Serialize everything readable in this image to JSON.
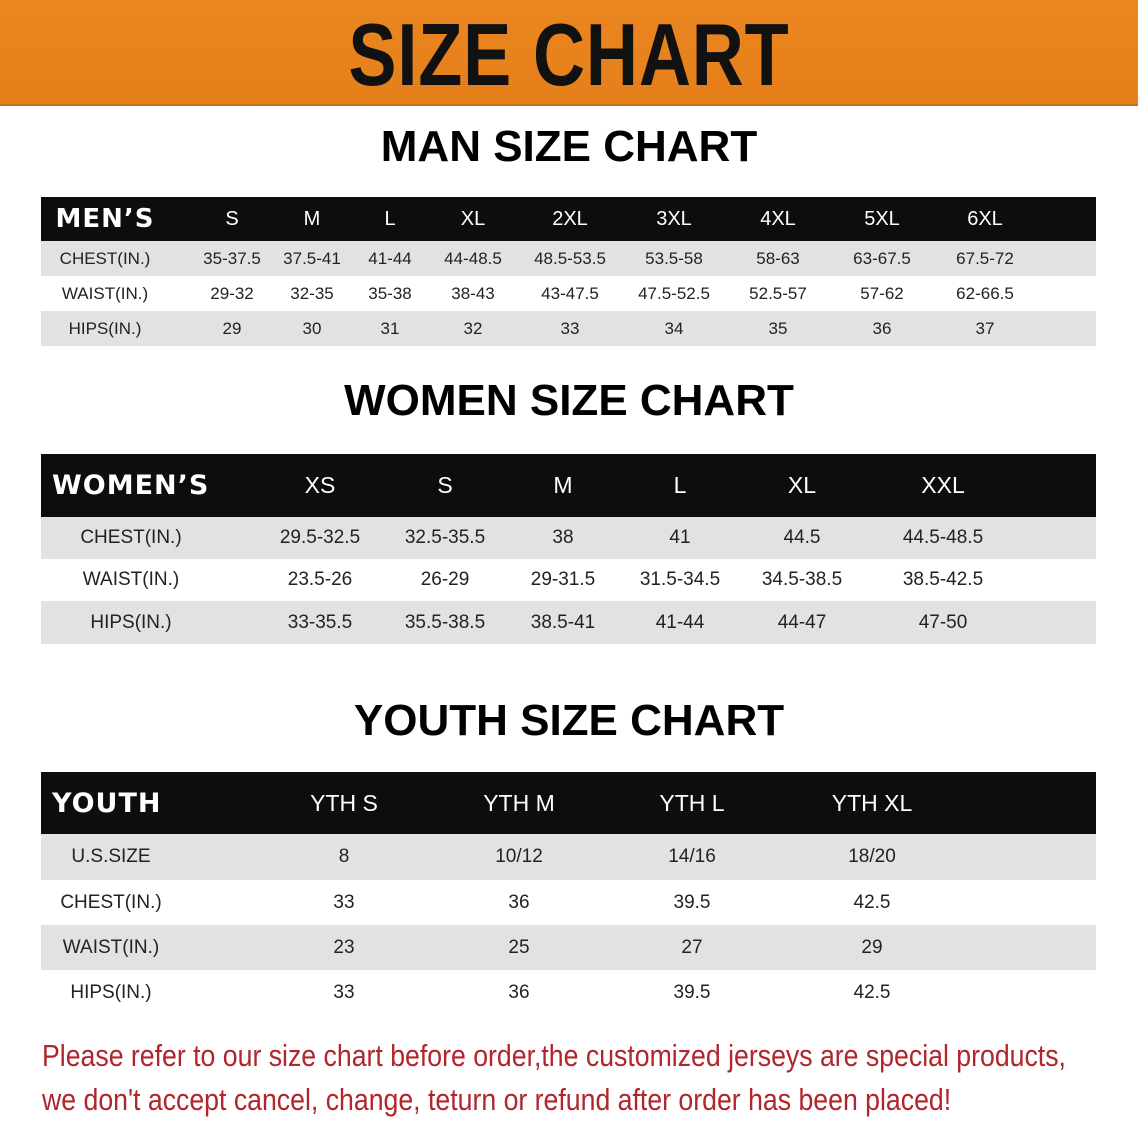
{
  "banner": {
    "title": "SIZE CHART",
    "color": "#e8821e"
  },
  "men": {
    "title": "MAN SIZE CHART",
    "header": [
      "MEN’S",
      "S",
      "M",
      "L",
      "XL",
      "2XL",
      "3XL",
      "4XL",
      "5XL",
      "6XL"
    ],
    "rows": [
      [
        "CHEST(IN.)",
        "35-37.5",
        "37.5-41",
        "41-44",
        "44-48.5",
        "48.5-53.5",
        "53.5-58",
        "58-63",
        "63-67.5",
        "67.5-72"
      ],
      [
        "WAIST(IN.)",
        "29-32",
        "32-35",
        "35-38",
        "38-43",
        "43-47.5",
        "47.5-52.5",
        "52.5-57",
        "57-62",
        "62-66.5"
      ],
      [
        "HIPS(IN.)",
        "29",
        "30",
        "31",
        "32",
        "33",
        "34",
        "35",
        "36",
        "37"
      ]
    ]
  },
  "women": {
    "title": "WOMEN SIZE CHART",
    "header": [
      "WOMEN’S",
      "XS",
      "S",
      "M",
      "L",
      "XL",
      "XXL"
    ],
    "rows": [
      [
        "CHEST(IN.)",
        "29.5-32.5",
        "32.5-35.5",
        "38",
        "41",
        "44.5",
        "44.5-48.5"
      ],
      [
        "WAIST(IN.)",
        "23.5-26",
        "26-29",
        "29-31.5",
        "31.5-34.5",
        "34.5-38.5",
        "38.5-42.5"
      ],
      [
        "HIPS(IN.)",
        "33-35.5",
        "35.5-38.5",
        "38.5-41",
        "41-44",
        "44-47",
        "47-50"
      ]
    ]
  },
  "youth": {
    "title": "YOUTH SIZE CHART",
    "header": [
      "YOUTH",
      "YTH S",
      "YTH M",
      "YTH L",
      "YTH XL"
    ],
    "rows": [
      [
        "U.S.SIZE",
        "8",
        "10/12",
        "14/16",
        "18/20"
      ],
      [
        "CHEST(IN.)",
        "33",
        "36",
        "39.5",
        "42.5"
      ],
      [
        "WAIST(IN.)",
        "23",
        "25",
        "27",
        "29"
      ],
      [
        "HIPS(IN.)",
        "33",
        "36",
        "39.5",
        "42.5"
      ]
    ]
  },
  "notice": {
    "line1": "Please refer to our size chart before order,the customized jerseys are special products,",
    "line2": "we don't accept cancel, change, teturn or refund after order has been placed!",
    "color": "#b0262b"
  }
}
